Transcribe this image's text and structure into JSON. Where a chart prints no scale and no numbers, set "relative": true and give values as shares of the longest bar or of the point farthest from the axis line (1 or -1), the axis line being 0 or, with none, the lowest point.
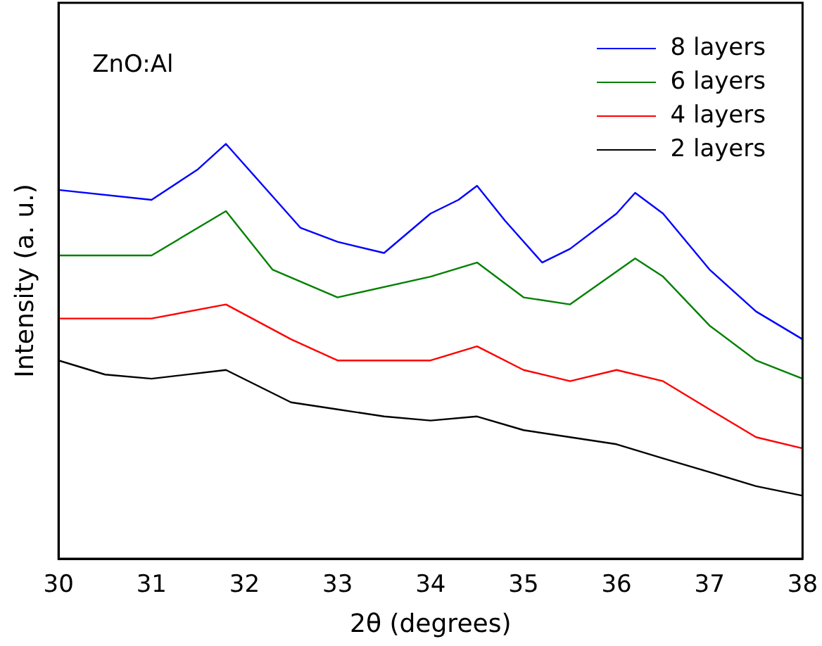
{
  "chart_data": {
    "type": "line",
    "relative": true,
    "xlabel": "2θ (degrees)",
    "ylabel": "Intensity (a. u.)",
    "xlim": [
      30,
      38
    ],
    "xticks": [
      30,
      31,
      32,
      33,
      34,
      35,
      36,
      37,
      38
    ],
    "legend": "top right",
    "grid": false,
    "marker": "none",
    "annotations": [
      "ZnO:Al"
    ],
    "series": [
      {
        "name": "8 layers",
        "color": "#0000ff",
        "x": [
          30,
          31,
          31.5,
          31.8,
          32.2,
          32.6,
          33,
          33.5,
          34,
          34.3,
          34.5,
          34.8,
          35.2,
          35.5,
          36,
          36.2,
          36.5,
          37,
          37.5,
          38
        ],
        "values": [
          0.889,
          0.865,
          0.939,
          1,
          0.899,
          0.798,
          0.764,
          0.737,
          0.832,
          0.865,
          0.899,
          0.815,
          0.714,
          0.747,
          0.832,
          0.882,
          0.832,
          0.697,
          0.596,
          0.529
        ]
      },
      {
        "name": "6 layers",
        "color": "#008000",
        "x": [
          30,
          31,
          31.8,
          32.3,
          33,
          34,
          34.5,
          35,
          35.5,
          36.2,
          36.5,
          37,
          37.5,
          38
        ],
        "values": [
          0.731,
          0.731,
          0.838,
          0.697,
          0.63,
          0.68,
          0.714,
          0.63,
          0.613,
          0.724,
          0.68,
          0.562,
          0.478,
          0.434
        ]
      },
      {
        "name": "4 layers",
        "color": "#ff0000",
        "x": [
          30,
          31,
          31.8,
          32.5,
          33,
          34,
          34.5,
          35,
          35.5,
          36,
          36.5,
          37,
          37.5,
          38
        ],
        "values": [
          0.579,
          0.579,
          0.613,
          0.529,
          0.478,
          0.478,
          0.512,
          0.455,
          0.428,
          0.455,
          0.428,
          0.36,
          0.293,
          0.266
        ]
      },
      {
        "name": "2 layers",
        "color": "#000000",
        "x": [
          30,
          30.5,
          31,
          31.8,
          32.5,
          33,
          33.5,
          34,
          34.5,
          35,
          35.5,
          36,
          36.5,
          37,
          37.5,
          38
        ],
        "values": [
          0.478,
          0.444,
          0.434,
          0.455,
          0.377,
          0.36,
          0.343,
          0.333,
          0.343,
          0.31,
          0.293,
          0.276,
          0.242,
          0.209,
          0.175,
          0.152
        ]
      }
    ]
  }
}
